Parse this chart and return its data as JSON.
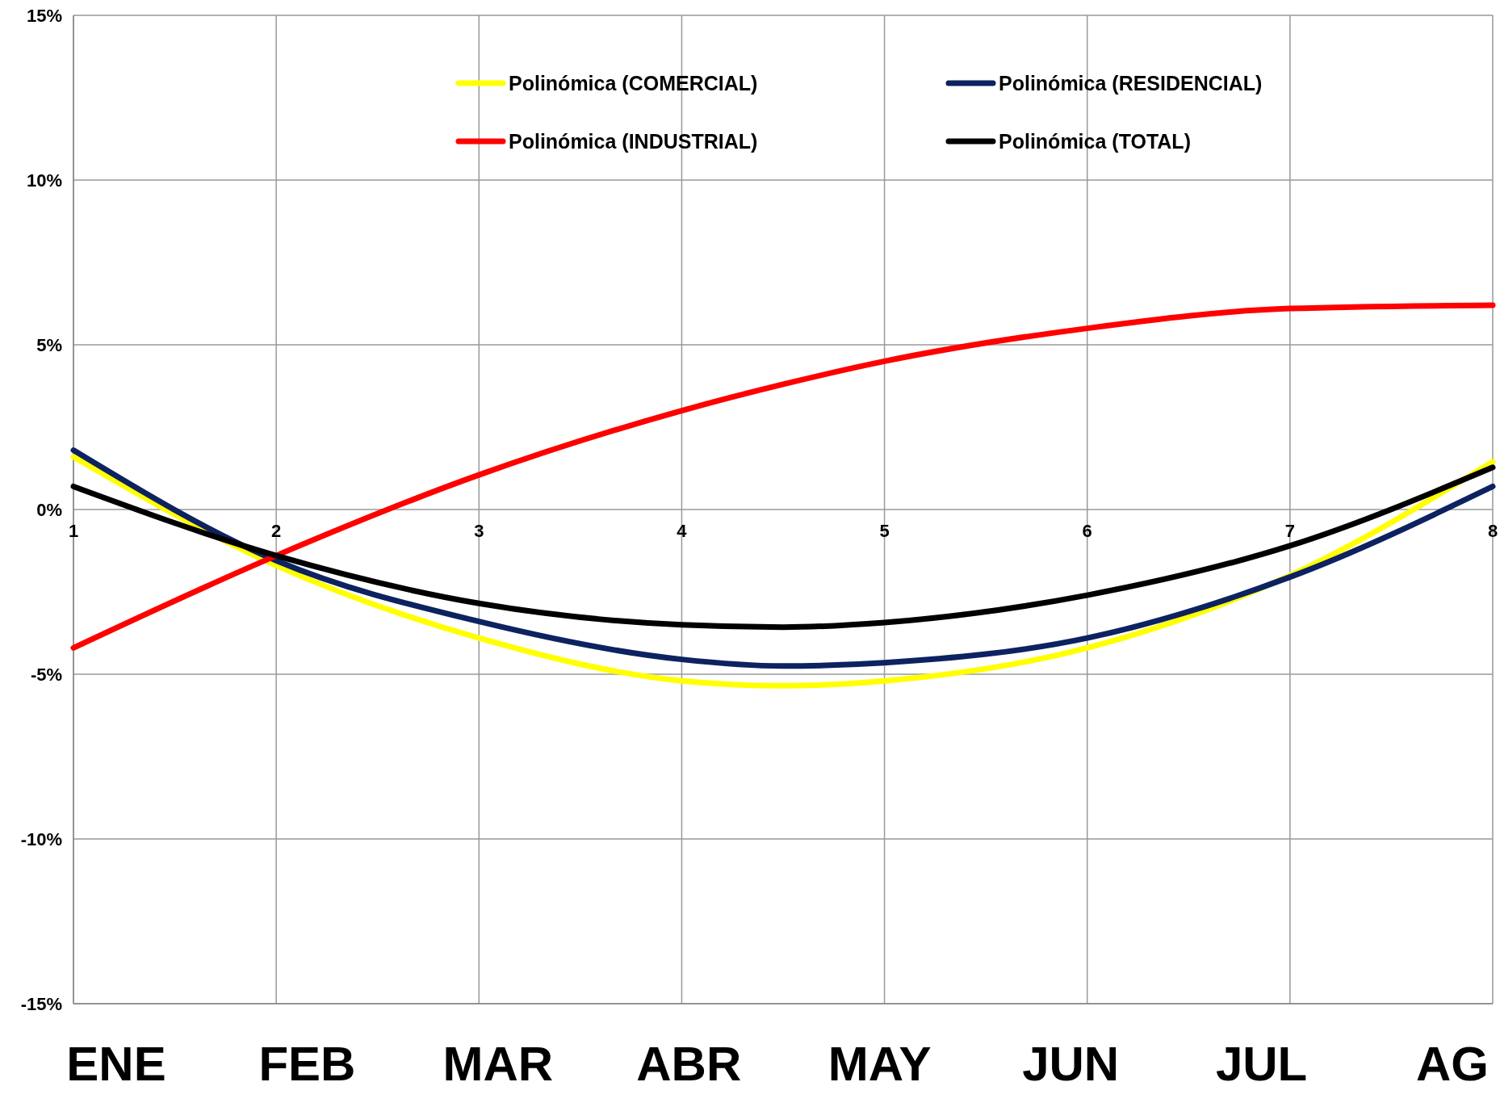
{
  "chart_data": {
    "type": "line",
    "x": [
      1,
      2,
      3,
      4,
      4.5,
      5,
      6,
      7,
      8
    ],
    "series": [
      {
        "name": "Polinómica (COMERCIAL)",
        "color": "#ffff00",
        "values": [
          1.6,
          -1.7,
          -3.9,
          -5.2,
          -5.35,
          -5.2,
          -4.2,
          -2.0,
          1.45
        ]
      },
      {
        "name": "Polinómica (RESIDENCIAL)",
        "color": "#0d2260",
        "values": [
          1.8,
          -1.55,
          -3.4,
          -4.55,
          -4.75,
          -4.65,
          -3.9,
          -2.05,
          0.7
        ]
      },
      {
        "name": "Polinómica (INDUSTRIAL)",
        "color": "#ff0000",
        "values": [
          -4.2,
          -1.4,
          1.05,
          3.0,
          3.8,
          4.5,
          5.5,
          6.1,
          6.2
        ]
      },
      {
        "name": "Polinómica (TOTAL)",
        "color": "#000000",
        "values": [
          0.7,
          -1.4,
          -2.85,
          -3.5,
          -3.57,
          -3.43,
          -2.6,
          -1.1,
          1.28
        ]
      }
    ],
    "xlim": [
      1,
      8
    ],
    "xticks": [
      1,
      2,
      3,
      4,
      5,
      6,
      7,
      8
    ],
    "ylim": [
      -15,
      15
    ],
    "yticks": [
      {
        "value": -15,
        "label": "-15%"
      },
      {
        "value": -10,
        "label": "-10%"
      },
      {
        "value": -5,
        "label": "-5%"
      },
      {
        "value": 0,
        "label": "0%"
      },
      {
        "value": 5,
        "label": "5%"
      },
      {
        "value": 10,
        "label": "10%"
      },
      {
        "value": 15,
        "label": "15%"
      }
    ],
    "grid": true,
    "legend": "top",
    "marker": "none",
    "line_style": "solid",
    "annotations": [
      "ENE",
      "FEB",
      "MAR",
      "ABR",
      "MAY",
      "JUN",
      "JUL",
      "AG"
    ]
  }
}
